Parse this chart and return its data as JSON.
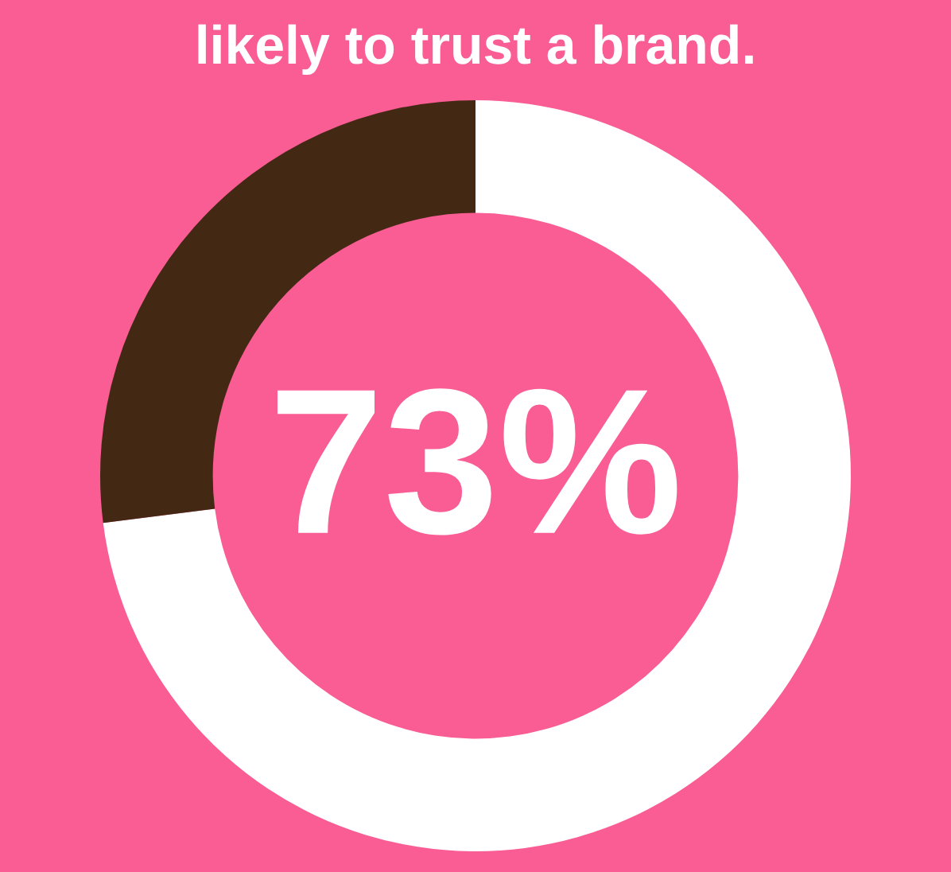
{
  "chart_data": {
    "type": "donut",
    "title": "likely to trust a brand.",
    "categories": [
      null,
      null
    ],
    "values": [
      73,
      27
    ],
    "colors": [
      "#ffffff",
      "#432914"
    ],
    "value_labels": [
      "73%",
      null
    ],
    "legend": false
  }
}
